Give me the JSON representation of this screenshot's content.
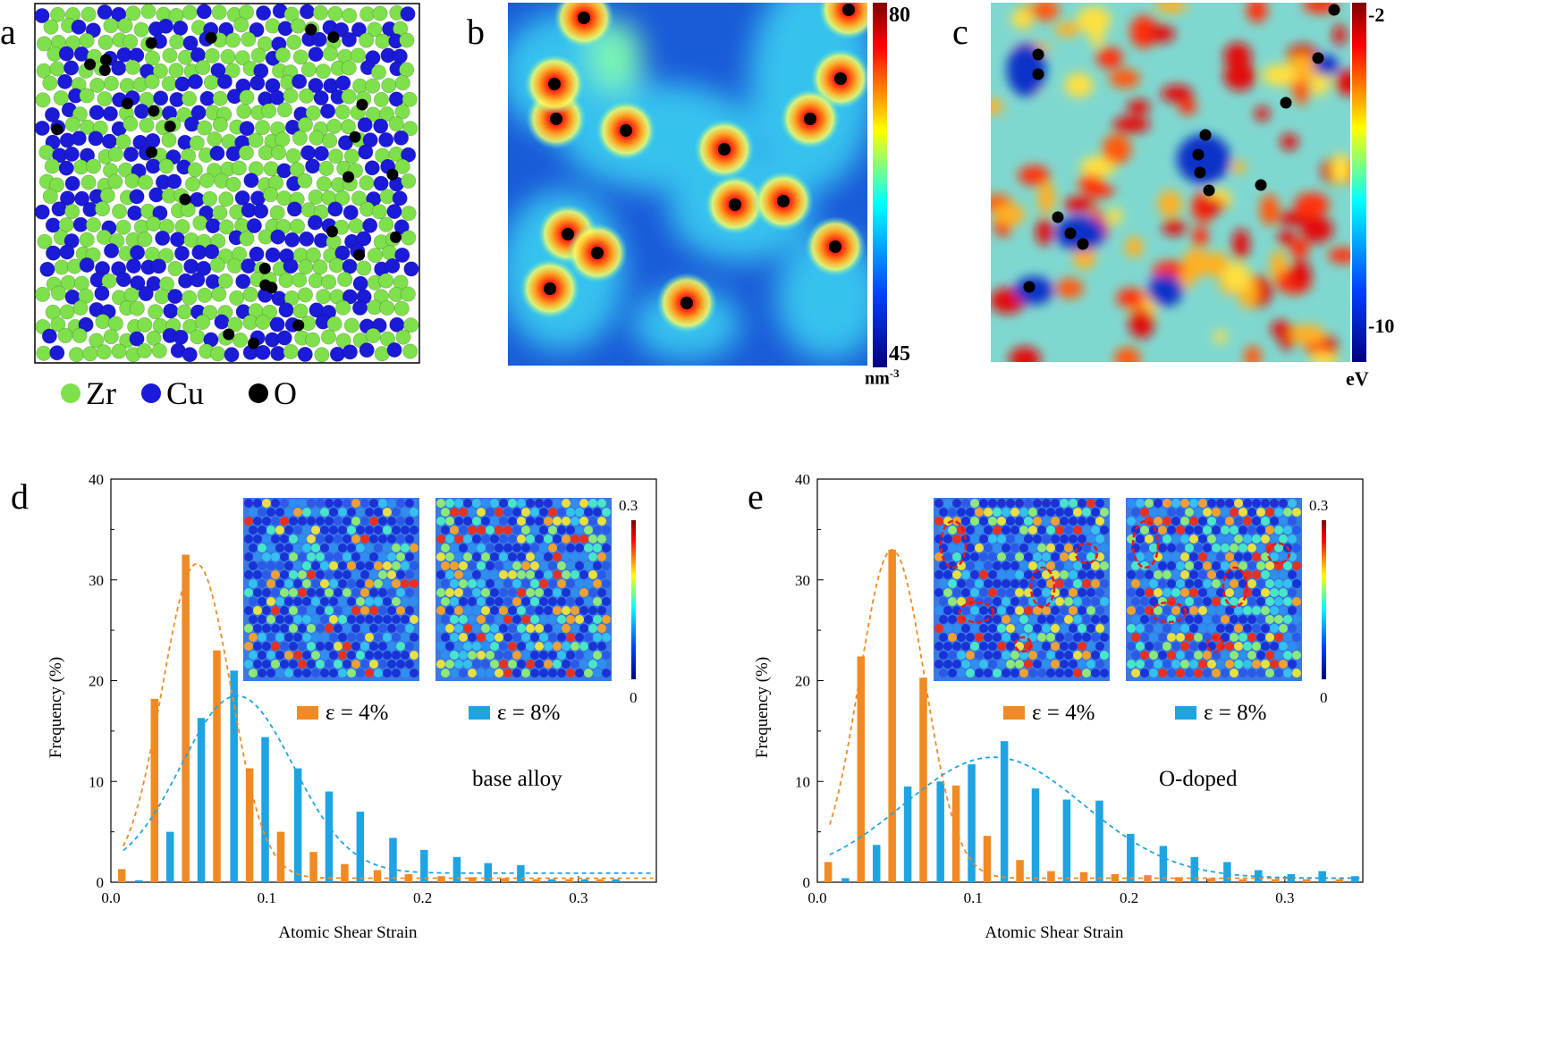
{
  "panels": {
    "a": {
      "label": "a",
      "legend": [
        "Zr",
        "Cu",
        "O"
      ],
      "colors": {
        "Zr": "#7ee04a",
        "Cu": "#1a1ad8",
        "O": "#000000"
      }
    },
    "b": {
      "label": "b",
      "colorbar_max": "80",
      "colorbar_min": "45",
      "colorbar_unit": "nm",
      "colorbar_unit_exp": "-3"
    },
    "c": {
      "label": "c",
      "colorbar_max": "-2",
      "colorbar_min": "-10",
      "colorbar_unit": "eV"
    },
    "d": {
      "label": "d",
      "annotation": "base alloy",
      "inset_max": "0.3",
      "inset_min": "0"
    },
    "e": {
      "label": "e",
      "annotation": "O-doped",
      "inset_max": "0.3",
      "inset_min": "0"
    }
  },
  "legend": {
    "s4": "ε = 4%",
    "s8": "ε = 8%"
  },
  "chart_data": [
    {
      "type": "bar",
      "panel": "d",
      "annotation": "base alloy",
      "xlabel": "Atomic Shear Strain",
      "ylabel": "Frequency (%)",
      "xlim": [
        0,
        0.35
      ],
      "ylim": [
        0,
        40
      ],
      "xticks": [
        "0.0",
        "0.1",
        "0.2",
        "0.3"
      ],
      "yticks": [
        "0",
        "10",
        "20",
        "30",
        "40"
      ],
      "series": [
        {
          "name": "ε = 4%",
          "color": "#f08a24",
          "x": [
            0.007,
            0.028,
            0.048,
            0.068,
            0.089,
            0.109,
            0.13,
            0.15,
            0.171,
            0.191,
            0.212,
            0.232,
            0.253,
            0.273,
            0.294,
            0.314
          ],
          "values": [
            1.3,
            18.2,
            32.5,
            23.0,
            11.3,
            5.0,
            3.0,
            1.8,
            1.2,
            0.8,
            0.6,
            0.5,
            0.4,
            0.3,
            0.3,
            0.3
          ]
        },
        {
          "name": "ε = 8%",
          "color": "#1fa4e2",
          "x": [
            0.018,
            0.038,
            0.058,
            0.079,
            0.099,
            0.12,
            0.14,
            0.16,
            0.181,
            0.201,
            0.222,
            0.242,
            0.263,
            0.283,
            0.304,
            0.324
          ],
          "values": [
            0.2,
            5.0,
            16.3,
            21.0,
            14.4,
            11.3,
            9.0,
            7.0,
            4.4,
            3.2,
            2.5,
            1.9,
            1.7,
            0.3,
            0.3,
            0.3
          ]
        }
      ]
    },
    {
      "type": "bar",
      "panel": "e",
      "annotation": "O-doped",
      "xlabel": "Atomic Shear Strain",
      "ylabel": "Frequency (%)",
      "xlim": [
        0,
        0.35
      ],
      "ylim": [
        0,
        40
      ],
      "xticks": [
        "0.0",
        "0.1",
        "0.2",
        "0.3"
      ],
      "yticks": [
        "0",
        "10",
        "20",
        "30",
        "40"
      ],
      "series": [
        {
          "name": "ε = 4%",
          "color": "#f08a24",
          "x": [
            0.007,
            0.028,
            0.048,
            0.068,
            0.089,
            0.109,
            0.13,
            0.15,
            0.171,
            0.191,
            0.212,
            0.232,
            0.253,
            0.273,
            0.294,
            0.314,
            0.335
          ],
          "values": [
            2.0,
            22.4,
            33.0,
            20.3,
            9.6,
            4.6,
            2.2,
            1.1,
            1.0,
            0.8,
            0.7,
            0.5,
            0.4,
            0.3,
            0.3,
            0.3,
            0.3
          ]
        },
        {
          "name": "ε = 8%",
          "color": "#1fa4e2",
          "x": [
            0.018,
            0.038,
            0.058,
            0.079,
            0.099,
            0.12,
            0.14,
            0.16,
            0.181,
            0.201,
            0.222,
            0.242,
            0.263,
            0.283,
            0.304,
            0.324,
            0.345
          ],
          "values": [
            0.4,
            3.7,
            9.5,
            10.0,
            11.7,
            14.0,
            9.3,
            8.2,
            8.1,
            4.8,
            3.6,
            2.5,
            2.0,
            1.2,
            0.8,
            1.1,
            0.6
          ]
        }
      ]
    }
  ]
}
